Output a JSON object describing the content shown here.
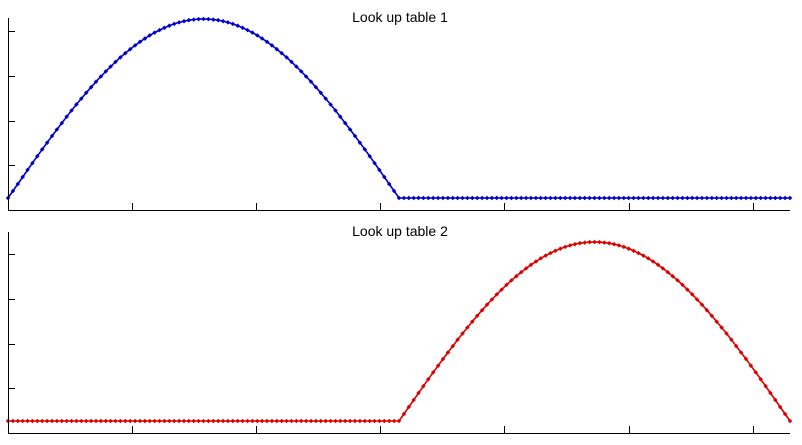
{
  "chart_data": [
    {
      "type": "line",
      "title": "Look up table 1",
      "xlabel": "",
      "ylabel": "",
      "xlim": [
        0,
        1
      ],
      "ylim": [
        0,
        1
      ],
      "grid": false,
      "x_ticks": [
        0.1587,
        0.3175,
        0.4762,
        0.6349,
        0.7937,
        0.9524
      ],
      "y_ticks": [
        0.25,
        0.5,
        0.75,
        1.0
      ],
      "colors": {
        "series": "#0000cc"
      },
      "series": [
        {
          "curve": "half-sine",
          "x_start": 0.0,
          "x_peak": 0.25,
          "x_end": 0.5,
          "y_peak": 1.0,
          "zero_level": 0.0,
          "marker": "diamond",
          "x": [
            0,
            0.05,
            0.1,
            0.15,
            0.2,
            0.25,
            0.3,
            0.35,
            0.4,
            0.45,
            0.5,
            0.6,
            0.7,
            0.8,
            0.9,
            1.0
          ],
          "y": [
            0.0,
            0.31,
            0.59,
            0.81,
            0.95,
            1.0,
            0.95,
            0.81,
            0.59,
            0.31,
            0.0,
            0.0,
            0.0,
            0.0,
            0.0,
            0.0
          ]
        }
      ]
    },
    {
      "type": "line",
      "title": "Look up table 2",
      "xlabel": "",
      "ylabel": "",
      "xlim": [
        0,
        1
      ],
      "ylim": [
        0,
        1
      ],
      "grid": false,
      "x_ticks": [
        0.1587,
        0.3175,
        0.4762,
        0.6349,
        0.7937,
        0.9524
      ],
      "y_ticks": [
        0.25,
        0.5,
        0.75,
        1.0
      ],
      "colors": {
        "series": "#dd0000"
      },
      "series": [
        {
          "curve": "half-sine",
          "x_start": 0.5,
          "x_peak": 0.75,
          "x_end": 1.0,
          "y_peak": 1.0,
          "zero_level": 0.0,
          "marker": "diamond",
          "x": [
            0,
            0.1,
            0.2,
            0.3,
            0.4,
            0.5,
            0.55,
            0.6,
            0.65,
            0.7,
            0.75,
            0.8,
            0.85,
            0.9,
            0.95,
            1.0
          ],
          "y": [
            0.0,
            0.0,
            0.0,
            0.0,
            0.0,
            0.0,
            0.31,
            0.59,
            0.81,
            0.95,
            1.0,
            0.95,
            0.81,
            0.59,
            0.31,
            0.0
          ]
        }
      ]
    }
  ]
}
